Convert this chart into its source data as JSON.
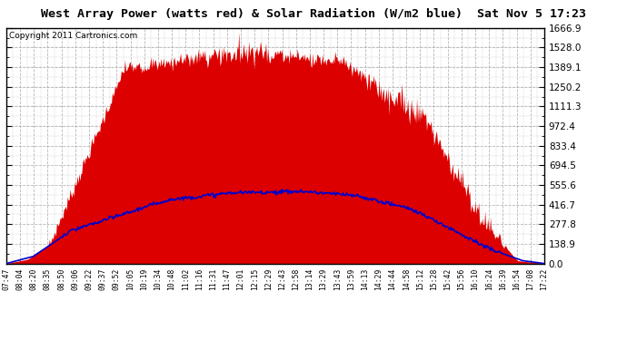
{
  "title": "West Array Power (watts red) & Solar Radiation (W/m2 blue)  Sat Nov 5 17:23",
  "copyright": "Copyright 2011 Cartronics.com",
  "y_max": 1666.9,
  "y_min": 0.0,
  "y_ticks": [
    0.0,
    138.9,
    277.8,
    416.7,
    555.6,
    694.5,
    833.4,
    972.4,
    1111.3,
    1250.2,
    1389.1,
    1528.0,
    1666.9
  ],
  "x_labels": [
    "07:47",
    "08:04",
    "08:20",
    "08:35",
    "08:50",
    "09:06",
    "09:22",
    "09:37",
    "09:52",
    "10:05",
    "10:19",
    "10:34",
    "10:48",
    "11:02",
    "11:16",
    "11:31",
    "11:47",
    "12:01",
    "12:15",
    "12:29",
    "12:43",
    "12:58",
    "13:14",
    "13:29",
    "13:43",
    "13:59",
    "14:13",
    "14:29",
    "14:44",
    "14:58",
    "15:12",
    "15:28",
    "15:42",
    "15:56",
    "16:10",
    "16:24",
    "16:39",
    "16:54",
    "17:08",
    "17:22"
  ],
  "fill_color": "#dd0000",
  "line_color": "#0000cc",
  "bg_color": "#ffffff",
  "grid_color": "#aaaaaa",
  "title_fontsize": 9.5,
  "copyright_fontsize": 6.5,
  "n_points": 600
}
